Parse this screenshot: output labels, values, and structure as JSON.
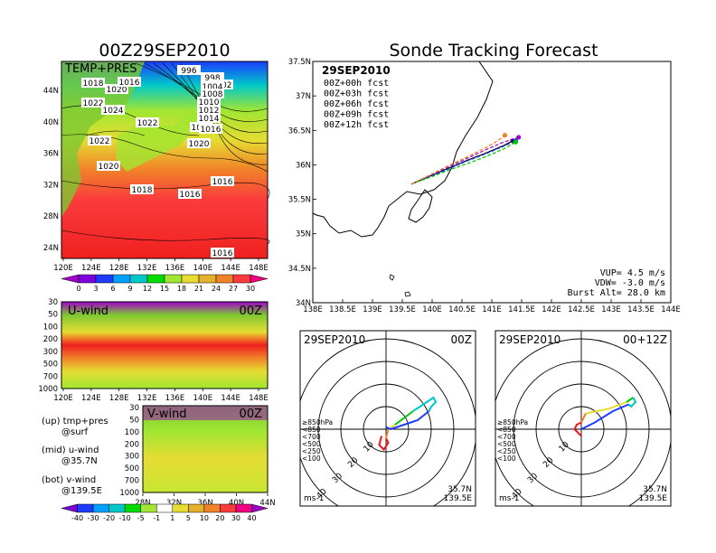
{
  "left_title": "00Z29SEP2010",
  "right_title": "Sonde Tracking Forecast",
  "top_map": {
    "label": "TEMP+PRES",
    "lon_ticks": [
      "120E",
      "124E",
      "128E",
      "132E",
      "136E",
      "140E",
      "144E",
      "148E"
    ],
    "lat_ticks": [
      "44N",
      "40N",
      "36N",
      "32N",
      "28N",
      "24N"
    ],
    "isobar_labels": [
      "1018",
      "1020",
      "1016",
      "1022",
      "1024",
      "1022",
      "1022",
      "1020",
      "1018",
      "1016",
      "1020",
      "1018",
      "1016",
      "996",
      "998",
      "1002",
      "1004",
      "1008",
      "1010",
      "1012",
      "1014",
      "1016",
      "1016"
    ],
    "colorbar": {
      "ticks": [
        "0",
        "3",
        "6",
        "9",
        "12",
        "15",
        "18",
        "21",
        "24",
        "27",
        "30"
      ],
      "colors": [
        "#a000c8",
        "#7d00dc",
        "#1e3cff",
        "#00a0ff",
        "#00c8c8",
        "#00dc00",
        "#a0e632",
        "#e6dc32",
        "#e6af2d",
        "#f08228",
        "#fa3c3c",
        "#f00082"
      ]
    }
  },
  "u_panel": {
    "label": "U-wind",
    "time": "00Z",
    "p_ticks": [
      "30",
      "50",
      "100",
      "200",
      "300",
      "500",
      "700",
      "1000"
    ],
    "lon_ticks": [
      "120E",
      "124E",
      "128E",
      "132E",
      "136E",
      "140E",
      "144E",
      "148E"
    ]
  },
  "v_panel": {
    "label": "V-wind",
    "time": "00Z",
    "p_ticks": [
      "30",
      "50",
      "100",
      "200",
      "300",
      "500",
      "700",
      "1000"
    ],
    "lat_ticks": [
      "28N",
      "32N",
      "36N",
      "40N",
      "44N"
    ],
    "colorbar": {
      "ticks": [
        "-40",
        "-30",
        "-20",
        "-10",
        "-5",
        "-1",
        "1",
        "5",
        "10",
        "20",
        "30",
        "40"
      ],
      "colors": [
        "#7d00dc",
        "#1e3cff",
        "#00a0ff",
        "#00c8c8",
        "#00dc00",
        "#a0e632",
        "#ffffff",
        "#e6dc32",
        "#e6af2d",
        "#f08228",
        "#fa3c3c",
        "#f00082",
        "#a000c8"
      ]
    }
  },
  "legend_notes": [
    {
      "line1": "(up) tmp+pres",
      "line2": "@surf"
    },
    {
      "line1": "(mid) u-wind",
      "line2": "@35.7N"
    },
    {
      "line1": "(bot) v-wind",
      "line2": "@139.5E"
    }
  ],
  "track": {
    "date": "29SEP2010",
    "lat_ticks": [
      "37.5N",
      "37N",
      "36.5N",
      "36N",
      "35.5N",
      "35N",
      "34.5N",
      "34N"
    ],
    "lon_ticks": [
      "138E",
      "138.5E",
      "139E",
      "139.5E",
      "140E",
      "140.5E",
      "141E",
      "141.5E",
      "142E",
      "142.5E",
      "143E",
      "143.5E",
      "144E"
    ],
    "forecasts": [
      {
        "label": "00Z+00h  fcst",
        "color": "#000000"
      },
      {
        "label": "00Z+03h  fcst",
        "color": "#a000c8"
      },
      {
        "label": "00Z+06h  fcst",
        "color": "#1e3cff"
      },
      {
        "label": "00Z+09h  fcst",
        "color": "#00c800"
      },
      {
        "label": "00Z+12h  fcst",
        "color": "#f08228"
      }
    ],
    "vup": "VUP=  4.5  m/s",
    "vdw": "VDW=  -3.0  m/s",
    "burst": "Burst Alt=  28.0  km"
  },
  "chart_data": [
    {
      "type": "line",
      "title": "Sonde Tracking Forecast",
      "xlabel": "",
      "ylabel": "",
      "xlim": [
        138,
        144
      ],
      "ylim": [
        34,
        37.5
      ],
      "series": [
        {
          "name": "00Z+00h fcst",
          "x": [
            139.65,
            140.0,
            140.3,
            140.6,
            140.9,
            141.2,
            141.35
          ],
          "y": [
            35.72,
            35.85,
            35.96,
            36.07,
            36.17,
            36.28,
            36.35
          ]
        },
        {
          "name": "00Z+03h fcst",
          "x": [
            139.65,
            140.0,
            140.3,
            140.6,
            140.9,
            141.2,
            141.45
          ],
          "y": [
            35.72,
            35.86,
            35.98,
            36.1,
            36.22,
            36.33,
            36.4
          ]
        },
        {
          "name": "00Z+06h fcst",
          "x": [
            139.65,
            140.0,
            140.3,
            140.6,
            140.9,
            141.2,
            141.4
          ],
          "y": [
            35.72,
            35.84,
            35.95,
            36.06,
            36.16,
            36.27,
            36.35
          ]
        },
        {
          "name": "00Z+09h fcst",
          "x": [
            139.65,
            140.0,
            140.3,
            140.6,
            140.9,
            141.2,
            141.4
          ],
          "y": [
            35.72,
            35.83,
            35.93,
            36.02,
            36.12,
            36.23,
            36.33
          ]
        },
        {
          "name": "00Z+12h fcst",
          "x": [
            139.65,
            140.0,
            140.3,
            140.6,
            140.9,
            141.1,
            141.22
          ],
          "y": [
            35.72,
            35.87,
            36.0,
            36.12,
            36.25,
            36.35,
            36.43
          ]
        }
      ]
    },
    {
      "type": "line",
      "title": "29SEP2010 00Z",
      "polar": true,
      "rings": [
        10,
        20,
        30,
        40
      ],
      "ring_labels": [
        "10",
        "20",
        "30",
        "40"
      ],
      "unit": "ms-1",
      "loc": [
        "35.7N",
        "139.5E"
      ],
      "levels": [
        {
          "label": "≥850hPa",
          "color": "#f01414"
        },
        {
          "label": "<850",
          "color": "#f08228"
        },
        {
          "label": "<700",
          "color": "#e6dc32"
        },
        {
          "label": "<500",
          "color": "#00c800"
        },
        {
          "label": "<250",
          "color": "#00c8c8"
        },
        {
          "label": "<100",
          "color": "#1e3cff"
        }
      ],
      "segments": [
        {
          "level": "≥850hPa",
          "u": [
            -2,
            -3,
            -1,
            1,
            0
          ],
          "v": [
            -3,
            -7,
            -9,
            -6,
            -4
          ]
        },
        {
          "level": "<850",
          "u": [
            0,
            1
          ],
          "v": [
            -4,
            0
          ]
        },
        {
          "level": "<700",
          "u": [
            1,
            4
          ],
          "v": [
            0,
            2
          ]
        },
        {
          "level": "<500",
          "u": [
            4,
            12
          ],
          "v": [
            2,
            8
          ]
        },
        {
          "level": "<250",
          "u": [
            12,
            21,
            22,
            20,
            19
          ],
          "v": [
            8,
            14,
            12,
            10,
            8
          ]
        },
        {
          "level": "<100",
          "u": [
            19,
            14,
            8,
            2,
            0
          ],
          "v": [
            8,
            4,
            2,
            0,
            1
          ]
        }
      ]
    },
    {
      "type": "line",
      "title": "29SEP2010 00+12Z",
      "polar": true,
      "rings": [
        10,
        20,
        30,
        40
      ],
      "ring_labels": [
        "10",
        "20",
        "30",
        "40"
      ],
      "unit": "ms-1",
      "loc": [
        "35.7N",
        "139.5E"
      ],
      "levels": [
        {
          "label": "≥850hPa",
          "color": "#f01414"
        },
        {
          "label": "<850",
          "color": "#f08228"
        },
        {
          "label": "<700",
          "color": "#e6dc32"
        },
        {
          "label": "<500",
          "color": "#00c800"
        },
        {
          "label": "<250",
          "color": "#00c8c8"
        },
        {
          "label": "<100",
          "color": "#1e3cff"
        }
      ],
      "segments": [
        {
          "level": "≥850hPa",
          "u": [
            0,
            -2,
            -3,
            -1,
            0
          ],
          "v": [
            3,
            2,
            0,
            -2,
            -3
          ]
        },
        {
          "level": "<850",
          "u": [
            0,
            2
          ],
          "v": [
            3,
            7
          ]
        },
        {
          "level": "<700",
          "u": [
            2,
            12,
            20
          ],
          "v": [
            7,
            9,
            12
          ]
        },
        {
          "level": "<500",
          "u": [
            20,
            23
          ],
          "v": [
            12,
            14
          ]
        },
        {
          "level": "<250",
          "u": [
            23,
            24,
            22,
            21
          ],
          "v": [
            14,
            12,
            10,
            11
          ]
        },
        {
          "level": "<100",
          "u": [
            21,
            14,
            6,
            0
          ],
          "v": [
            11,
            8,
            3,
            0
          ]
        }
      ]
    }
  ]
}
